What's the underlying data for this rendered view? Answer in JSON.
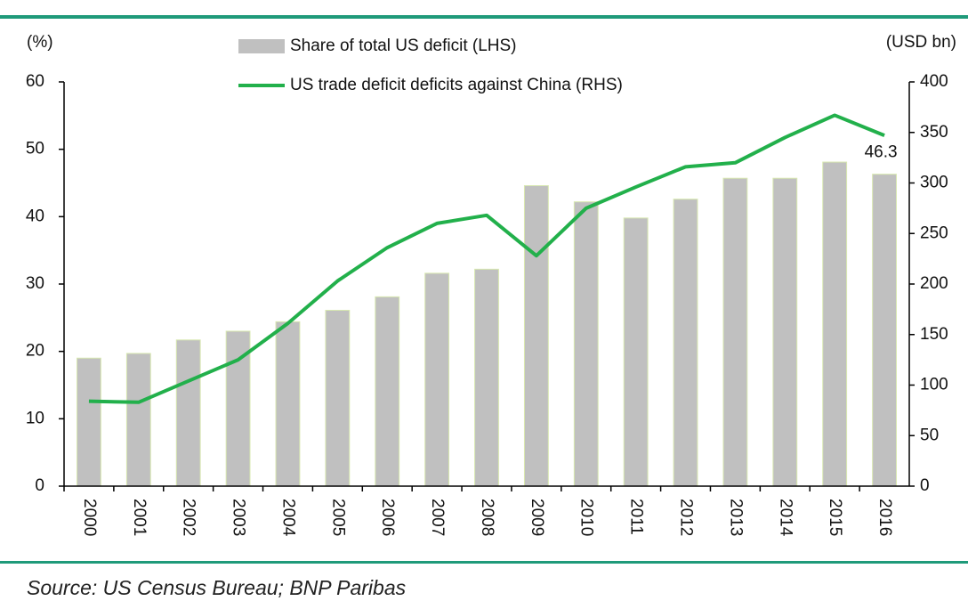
{
  "chart_data": {
    "type": "bar_line",
    "y_label": "(%)",
    "y2_label": "(USD bn)",
    "categories": [
      "2000",
      "2001",
      "2002",
      "2003",
      "2004",
      "2005",
      "2006",
      "2007",
      "2008",
      "2009",
      "2010",
      "2011",
      "2012",
      "2013",
      "2014",
      "2015",
      "2016"
    ],
    "series": [
      {
        "name": "Share of total US deficit (LHS)",
        "type": "bar",
        "color": "#c0c0c0",
        "values": [
          19,
          19.7,
          21.7,
          23,
          24.4,
          26.1,
          28.1,
          31.6,
          32.2,
          44.6,
          42.2,
          39.8,
          42.6,
          45.7,
          45.7,
          48.1,
          46.3
        ]
      },
      {
        "name": "US trade deficit deficits against China (RHS)",
        "type": "line",
        "axis": "y2",
        "color": "#22b04b",
        "values": [
          84,
          83,
          104,
          125,
          161,
          203,
          236,
          260,
          268,
          228,
          275,
          296,
          316,
          320,
          345,
          367,
          347
        ]
      }
    ],
    "ylim": [
      0,
      60
    ],
    "yticks": [
      0,
      10,
      20,
      30,
      40,
      50,
      60
    ],
    "y2lim": [
      0,
      400
    ],
    "y2ticks": [
      0,
      50,
      100,
      150,
      200,
      250,
      300,
      350,
      400
    ],
    "source": "Source: US Census Bureau; BNP Paribas"
  }
}
